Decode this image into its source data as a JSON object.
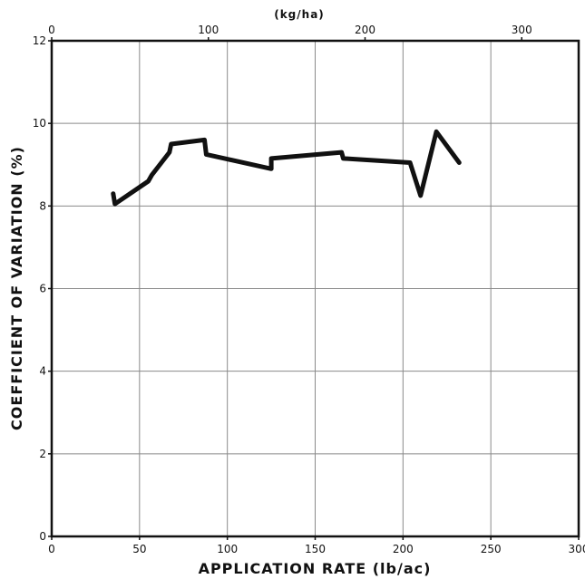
{
  "chart_data": {
    "type": "line",
    "xlabel": "APPLICATION RATE (lb/ac)",
    "ylabel": "COEFFICIENT OF VARIATION (%)",
    "secondary_xlabel": "(kg/ha)",
    "xlim": [
      0,
      300
    ],
    "ylim": [
      0,
      12
    ],
    "x_ticks": [
      "0",
      "50",
      "100",
      "150",
      "200",
      "250",
      "300"
    ],
    "y_ticks": [
      "0",
      "2",
      "4",
      "6",
      "8",
      "10",
      "12"
    ],
    "secondary_x_ticks": [
      "0",
      "100",
      "200",
      "300"
    ],
    "secondary_x_tick_values_lb_ac": [
      0,
      89.2,
      178.4,
      267.6
    ],
    "grid": true,
    "series": [
      {
        "x": [
          35,
          36,
          55,
          57,
          67,
          68,
          87,
          88,
          125,
          125,
          165,
          166,
          204,
          210,
          219,
          232
        ],
        "y": [
          8.3,
          8.05,
          8.6,
          8.75,
          9.3,
          9.5,
          9.6,
          9.25,
          8.9,
          9.15,
          9.3,
          9.15,
          9.05,
          8.25,
          9.8,
          9.05
        ]
      }
    ]
  }
}
